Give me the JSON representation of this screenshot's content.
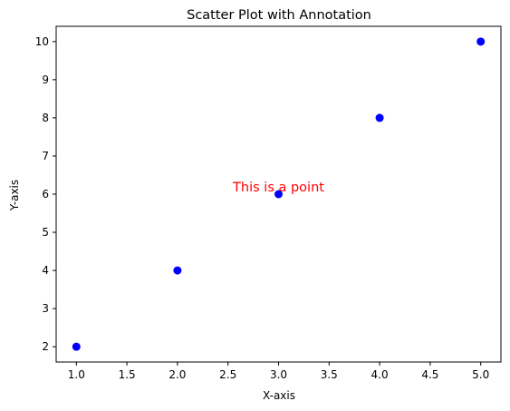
{
  "chart_data": {
    "type": "scatter",
    "title": "Scatter Plot with Annotation",
    "xlabel": "X-axis",
    "ylabel": "Y-axis",
    "x": [
      1,
      2,
      3,
      4,
      5
    ],
    "y": [
      2,
      4,
      6,
      8,
      10
    ],
    "xlim": [
      0.8,
      5.2
    ],
    "ylim": [
      1.6,
      10.4
    ],
    "xticks": [
      1.0,
      1.5,
      2.0,
      2.5,
      3.0,
      3.5,
      4.0,
      4.5,
      5.0
    ],
    "xtick_labels": [
      "1.0",
      "1.5",
      "2.0",
      "2.5",
      "3.0",
      "3.5",
      "4.0",
      "4.5",
      "5.0"
    ],
    "yticks": [
      2,
      3,
      4,
      5,
      6,
      7,
      8,
      9,
      10
    ],
    "ytick_labels": [
      "2",
      "3",
      "4",
      "5",
      "6",
      "7",
      "8",
      "9",
      "10"
    ],
    "grid": false,
    "point_color": "#0000ff",
    "annotation": {
      "text": "This is a point",
      "x": 3,
      "y": 6,
      "color": "#ff0000"
    }
  }
}
